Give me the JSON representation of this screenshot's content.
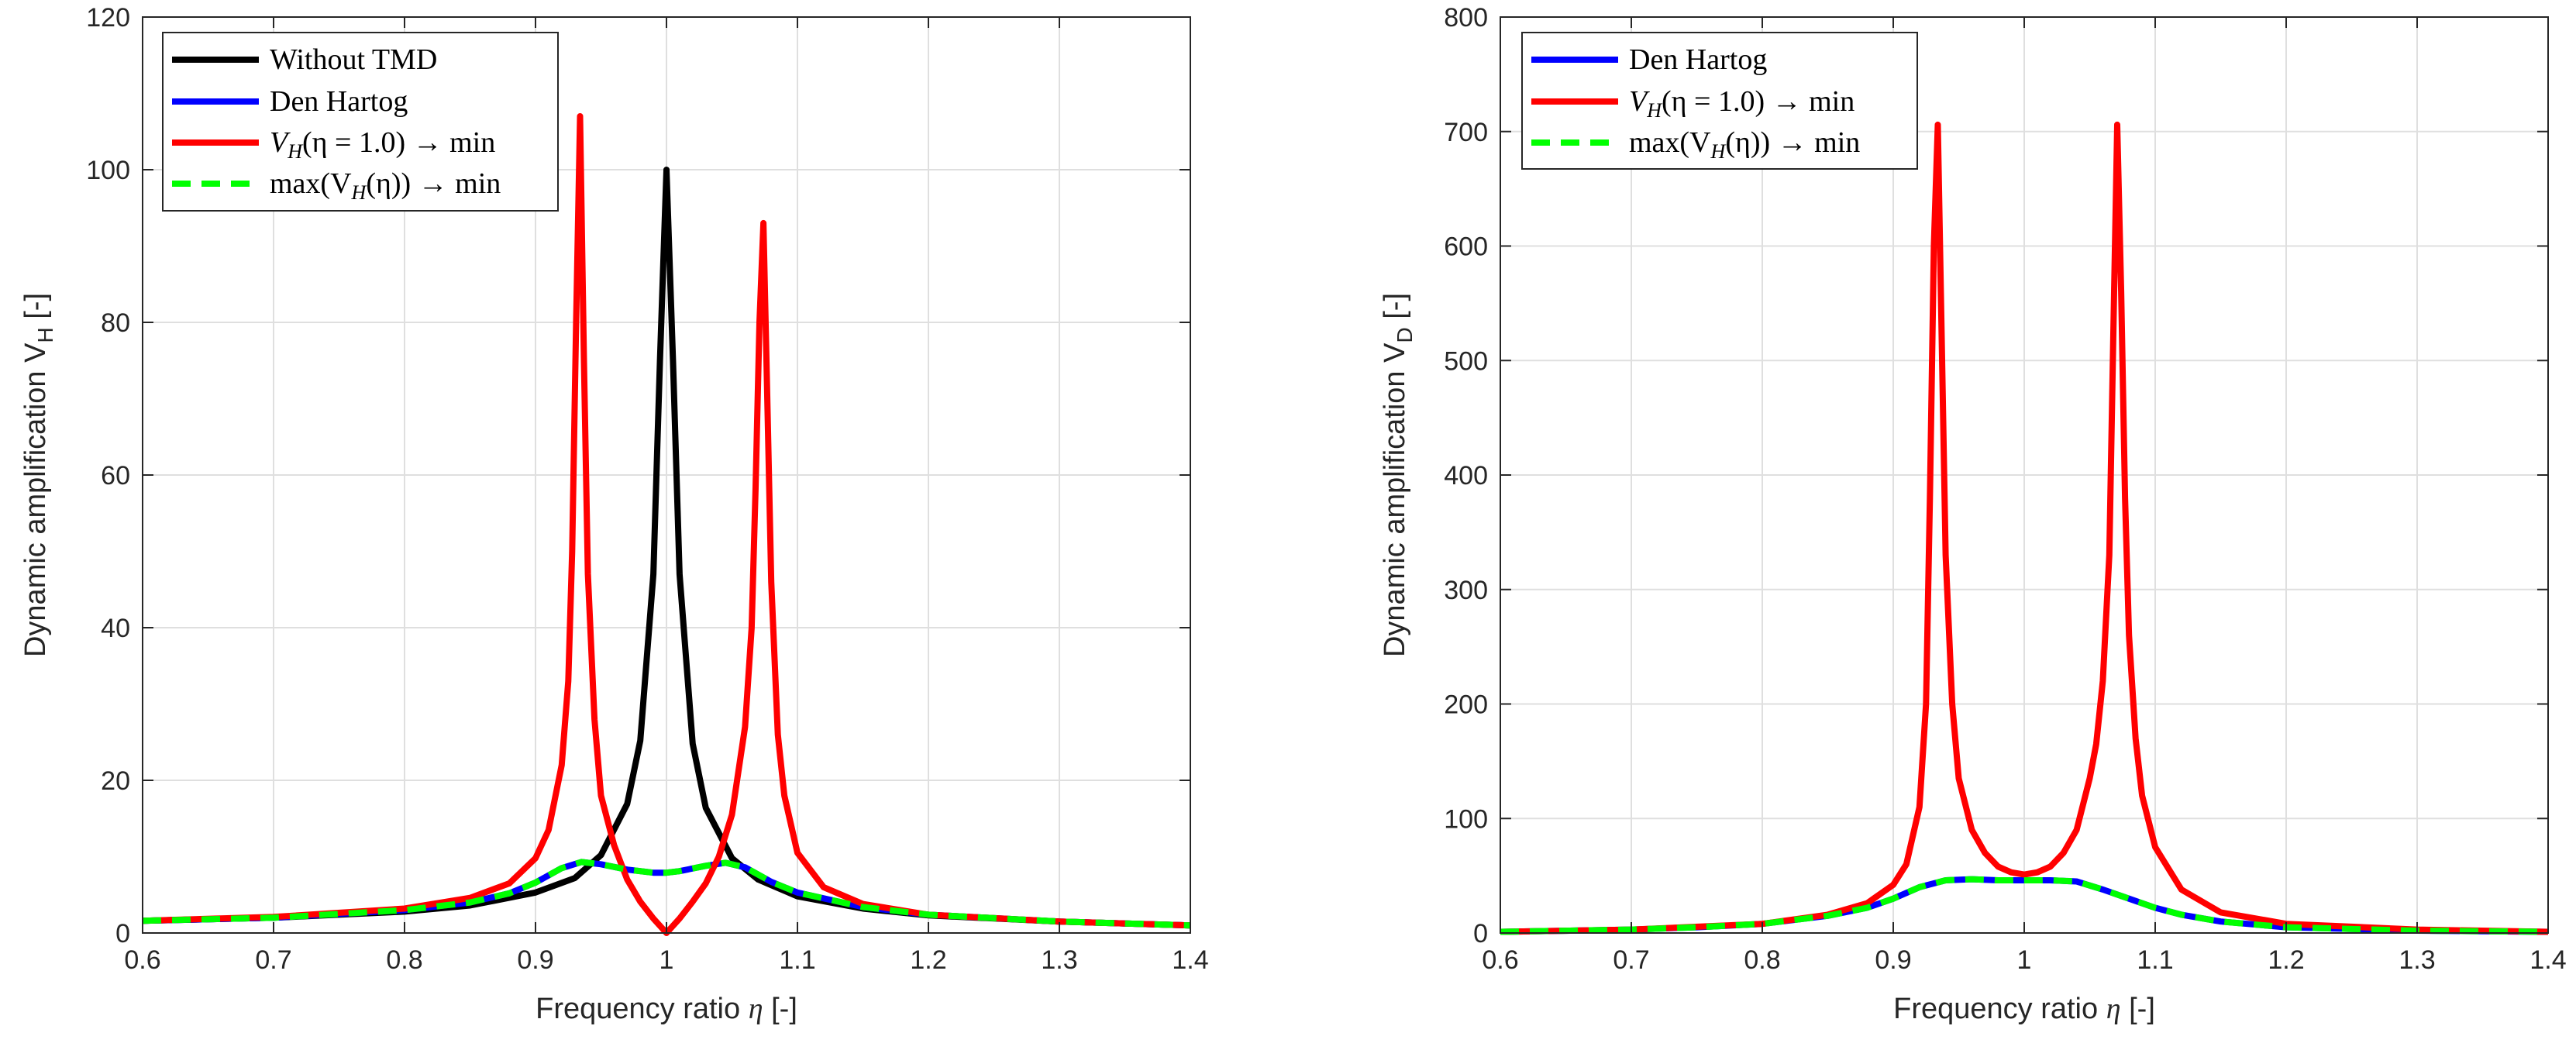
{
  "chart_data": [
    {
      "type": "line",
      "xlabel": "Frequency ratio η [-]",
      "ylabel": "Dynamic amplification V_H [-]",
      "ylabel_main": "Dynamic amplification V",
      "ylabel_sub": "H",
      "ylabel_tail": " [-]",
      "xlim": [
        0.6,
        1.4
      ],
      "ylim": [
        0,
        120
      ],
      "xticks": [
        0.6,
        0.7,
        0.8,
        0.9,
        1,
        1.1,
        1.2,
        1.3,
        1.4
      ],
      "xtick_labels": [
        "0.6",
        "0.7",
        "0.8",
        "0.9",
        "1",
        "1.1",
        "1.2",
        "1.3",
        "1.4"
      ],
      "yticks": [
        0,
        20,
        40,
        60,
        80,
        100,
        120
      ],
      "ytick_labels": [
        "0",
        "20",
        "40",
        "60",
        "80",
        "100",
        "120"
      ],
      "grid": true,
      "legend_position": "top-left",
      "series": [
        {
          "name": "Without TMD",
          "color": "#000000",
          "style": "solid",
          "x": [
            0.6,
            0.7,
            0.8,
            0.85,
            0.9,
            0.93,
            0.95,
            0.97,
            0.98,
            0.99,
            0.995,
            1.0,
            1.005,
            1.01,
            1.02,
            1.03,
            1.05,
            1.07,
            1.1,
            1.15,
            1.2,
            1.3,
            1.4
          ],
          "y": [
            1.6,
            2.0,
            2.8,
            3.6,
            5.3,
            7.2,
            10.2,
            16.9,
            25.2,
            47,
            75,
            100,
            75,
            47,
            24.8,
            16.4,
            9.8,
            7.0,
            4.8,
            3.2,
            2.3,
            1.5,
            1.0
          ]
        },
        {
          "name": "Den Hartog",
          "color": "#0000ff",
          "style": "solid",
          "x": [
            0.6,
            0.7,
            0.8,
            0.85,
            0.88,
            0.9,
            0.92,
            0.935,
            0.95,
            0.97,
            0.99,
            1.0,
            1.01,
            1.03,
            1.045,
            1.06,
            1.08,
            1.1,
            1.15,
            1.2,
            1.3,
            1.4
          ],
          "y": [
            1.6,
            2.0,
            3.0,
            4.0,
            5.2,
            6.6,
            8.5,
            9.3,
            9.0,
            8.3,
            7.9,
            7.9,
            8.1,
            8.8,
            9.2,
            8.6,
            6.7,
            5.3,
            3.4,
            2.4,
            1.5,
            1.0
          ]
        },
        {
          "name": "V_H(η = 1.0) → min",
          "color": "#ff0000",
          "style": "solid",
          "x": [
            0.6,
            0.7,
            0.8,
            0.85,
            0.88,
            0.9,
            0.91,
            0.92,
            0.925,
            0.928,
            0.931,
            0.934,
            0.937,
            0.94,
            0.945,
            0.95,
            0.96,
            0.97,
            0.98,
            0.99,
            1.0,
            1.01,
            1.02,
            1.03,
            1.04,
            1.05,
            1.06,
            1.065,
            1.068,
            1.071,
            1.074,
            1.077,
            1.08,
            1.085,
            1.09,
            1.1,
            1.12,
            1.15,
            1.2,
            1.3,
            1.4
          ],
          "y": [
            1.6,
            2.1,
            3.2,
            4.6,
            6.5,
            9.8,
            13.5,
            22,
            33,
            50,
            80,
            107,
            75,
            47,
            28,
            18,
            11.5,
            7.0,
            4.1,
            1.9,
            0,
            1.9,
            4.1,
            6.5,
            10.0,
            15.5,
            27,
            40,
            58,
            80,
            93,
            70,
            46,
            26,
            18,
            10.5,
            6.0,
            3.8,
            2.4,
            1.5,
            1.0
          ]
        },
        {
          "name": "max(V_H(η)) → min",
          "color": "#00ff00",
          "style": "dashed",
          "x": [
            0.6,
            0.7,
            0.8,
            0.85,
            0.88,
            0.9,
            0.92,
            0.935,
            0.95,
            0.97,
            0.99,
            1.0,
            1.01,
            1.03,
            1.045,
            1.06,
            1.08,
            1.1,
            1.15,
            1.2,
            1.3,
            1.4
          ],
          "y": [
            1.6,
            2.0,
            3.0,
            4.0,
            5.2,
            6.6,
            8.5,
            9.3,
            9.0,
            8.3,
            7.9,
            7.9,
            8.1,
            8.8,
            9.2,
            8.6,
            6.7,
            5.3,
            3.4,
            2.4,
            1.5,
            1.0
          ]
        }
      ]
    },
    {
      "type": "line",
      "xlabel": "Frequency ratio η [-]",
      "ylabel": "Dynamic amplification V_D [-]",
      "ylabel_main": "Dynamic amplification V",
      "ylabel_sub": "D",
      "ylabel_tail": " [-]",
      "xlim": [
        0.6,
        1.4
      ],
      "ylim": [
        0,
        800
      ],
      "xticks": [
        0.6,
        0.7,
        0.8,
        0.9,
        1,
        1.1,
        1.2,
        1.3,
        1.4
      ],
      "xtick_labels": [
        "0.6",
        "0.7",
        "0.8",
        "0.9",
        "1",
        "1.1",
        "1.2",
        "1.3",
        "1.4"
      ],
      "yticks": [
        0,
        100,
        200,
        300,
        400,
        500,
        600,
        700,
        800
      ],
      "ytick_labels": [
        "0",
        "100",
        "200",
        "300",
        "400",
        "500",
        "600",
        "700",
        "800"
      ],
      "grid": true,
      "legend_position": "top-left",
      "series": [
        {
          "name": "Den Hartog",
          "color": "#0000ff",
          "style": "solid",
          "x": [
            0.6,
            0.7,
            0.75,
            0.8,
            0.85,
            0.88,
            0.9,
            0.92,
            0.94,
            0.96,
            0.98,
            1.0,
            1.02,
            1.04,
            1.06,
            1.08,
            1.1,
            1.12,
            1.15,
            1.2,
            1.3,
            1.4
          ],
          "y": [
            1,
            3,
            5,
            8,
            15,
            22,
            30,
            40,
            46,
            47,
            46,
            46,
            46,
            45,
            38,
            30,
            22,
            16,
            10,
            5,
            2,
            1
          ]
        },
        {
          "name": "V_H(η = 1.0) → min",
          "color": "#ff0000",
          "style": "solid",
          "x": [
            0.6,
            0.7,
            0.8,
            0.85,
            0.88,
            0.9,
            0.91,
            0.92,
            0.925,
            0.928,
            0.931,
            0.934,
            0.937,
            0.94,
            0.945,
            0.95,
            0.96,
            0.97,
            0.98,
            0.99,
            1.0,
            1.01,
            1.02,
            1.03,
            1.04,
            1.05,
            1.055,
            1.06,
            1.065,
            1.068,
            1.071,
            1.074,
            1.077,
            1.08,
            1.085,
            1.09,
            1.1,
            1.12,
            1.15,
            1.2,
            1.3,
            1.4
          ],
          "y": [
            1,
            3,
            8,
            16,
            26,
            42,
            60,
            110,
            200,
            380,
            600,
            706,
            520,
            330,
            200,
            135,
            90,
            70,
            58,
            53,
            51,
            53,
            58,
            70,
            90,
            135,
            165,
            220,
            330,
            520,
            706,
            560,
            380,
            260,
            170,
            120,
            75,
            38,
            18,
            8,
            3,
            1
          ]
        },
        {
          "name": "max(V_H(η)) → min",
          "color": "#00ff00",
          "style": "dashed",
          "x": [
            0.6,
            0.7,
            0.75,
            0.8,
            0.85,
            0.88,
            0.9,
            0.92,
            0.94,
            0.96,
            0.98,
            1.0,
            1.02,
            1.04,
            1.06,
            1.08,
            1.1,
            1.12,
            1.15,
            1.2,
            1.3,
            1.4
          ],
          "y": [
            1,
            3,
            5,
            8,
            15,
            22,
            30,
            40,
            46,
            47,
            46,
            46,
            46,
            45,
            38,
            30,
            22,
            16,
            10,
            5,
            2,
            1
          ]
        }
      ]
    }
  ],
  "legend_labels": {
    "without_tmd": "Without TMD",
    "den_hartog": "Den Hartog",
    "vh_main": "V",
    "vh_sub": "H",
    "vh_rest": "(η = 1.0) → min",
    "max_pre": "max(V",
    "max_sub": "H",
    "max_rest": "(η)) → min"
  }
}
